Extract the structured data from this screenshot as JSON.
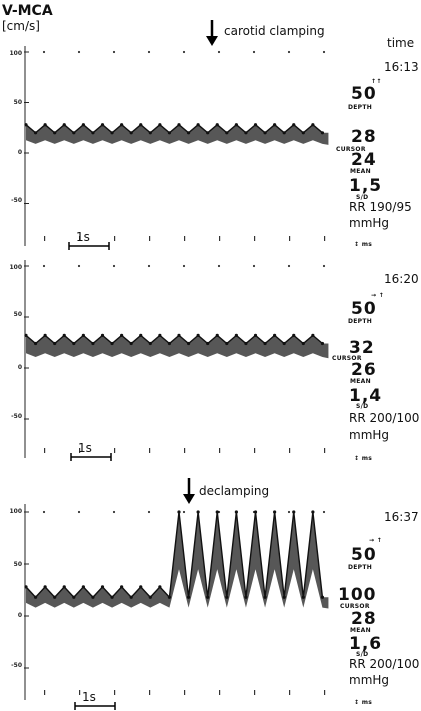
{
  "figure": {
    "y_label_line1": "V-MCA",
    "y_label_line2": "[cm/s]",
    "time_header": "time",
    "events": [
      {
        "label": "carotid clamping"
      },
      {
        "label": "declamping"
      }
    ]
  },
  "panels": [
    {
      "time": "16:13",
      "depth_marker": "↑↑",
      "depth": "50",
      "depth_label": "DEPTH",
      "cursor": "28",
      "cursor_label": "CURSOR",
      "mean": "24",
      "mean_label": "MEAN",
      "ratio": "1,5",
      "ratio_label": "S/D",
      "rr_line1": "RR 190/95",
      "rr_line2": "mmHg",
      "footer": "↕ ms",
      "scale_bar": "1s"
    },
    {
      "time": "16:20",
      "depth_marker": "→ ↑",
      "depth": "50",
      "depth_label": "DEPTH",
      "cursor": "32",
      "cursor_label": "CURSOR",
      "mean": "26",
      "mean_label": "MEAN",
      "ratio": "1,4",
      "ratio_label": "S/D",
      "rr_line1": "RR 200/100",
      "rr_line2": "mmHg",
      "footer": "↕ ms",
      "scale_bar": "1s"
    },
    {
      "time": "16:37",
      "depth_marker": "→ ↑",
      "depth": "50",
      "depth_label": "DEPTH",
      "cursor": "100",
      "cursor_label": "CURSOR",
      "mean": "28",
      "mean_label": "MEAN",
      "ratio": "1,6",
      "ratio_label": "S/D",
      "rr_line1": "RR 200/100",
      "rr_line2": "mmHg",
      "footer": "↕ ms",
      "scale_bar": "1s"
    }
  ],
  "chart_data": [
    {
      "type": "line",
      "yticks": [
        "100",
        "50",
        "0",
        "-50"
      ],
      "ylim": [
        -75,
        100
      ],
      "x": [
        0.0,
        0.5,
        1.0,
        1.5,
        2.0,
        2.5,
        3.0,
        3.5,
        4.0,
        4.5,
        5.0,
        5.5,
        6.0,
        6.5,
        7.0,
        7.5,
        8.0,
        8.5,
        9.0,
        9.5,
        10.0,
        10.5,
        11.0,
        11.5,
        12.0,
        12.5,
        13.0,
        13.5,
        14.0,
        14.5,
        15.0,
        15.5
      ],
      "series": [
        {
          "values": [
            28,
            20,
            28,
            20,
            28,
            20,
            28,
            20,
            28,
            20,
            28,
            20,
            28,
            20,
            28,
            20,
            28,
            20,
            28,
            20,
            28,
            20,
            28,
            20,
            28,
            20,
            28,
            20,
            28,
            20,
            28,
            20
          ]
        }
      ]
    },
    {
      "type": "line",
      "yticks": [
        "100",
        "50",
        "0",
        "-50"
      ],
      "ylim": [
        -75,
        100
      ],
      "x": [
        0.0,
        0.5,
        1.0,
        1.5,
        2.0,
        2.5,
        3.0,
        3.5,
        4.0,
        4.5,
        5.0,
        5.5,
        6.0,
        6.5,
        7.0,
        7.5,
        8.0,
        8.5,
        9.0,
        9.5,
        10.0,
        10.5,
        11.0,
        11.5,
        12.0,
        12.5,
        13.0,
        13.5,
        14.0,
        14.5,
        15.0,
        15.5
      ],
      "series": [
        {
          "values": [
            32,
            24,
            32,
            24,
            32,
            24,
            32,
            24,
            32,
            24,
            32,
            24,
            32,
            24,
            32,
            24,
            32,
            24,
            32,
            24,
            32,
            24,
            32,
            24,
            32,
            24,
            32,
            24,
            32,
            24,
            32,
            24
          ]
        }
      ]
    },
    {
      "type": "line",
      "yticks": [
        "100",
        "50",
        "0",
        "-50"
      ],
      "ylim": [
        -75,
        100
      ],
      "x": [
        0.0,
        0.5,
        1.0,
        1.5,
        2.0,
        2.5,
        3.0,
        3.5,
        4.0,
        4.5,
        5.0,
        5.5,
        6.0,
        6.5,
        7.0,
        7.5,
        8.0,
        8.5,
        9.0,
        9.5,
        10.0,
        10.5,
        11.0,
        11.5,
        12.0,
        12.5,
        13.0,
        13.5,
        14.0,
        14.5,
        15.0,
        15.5
      ],
      "series": [
        {
          "values": [
            28,
            18,
            28,
            18,
            28,
            18,
            28,
            18,
            28,
            18,
            28,
            18,
            28,
            18,
            28,
            18,
            100,
            18,
            100,
            18,
            100,
            18,
            100,
            18,
            100,
            18,
            100,
            18,
            100,
            18,
            100,
            18
          ]
        }
      ]
    }
  ]
}
